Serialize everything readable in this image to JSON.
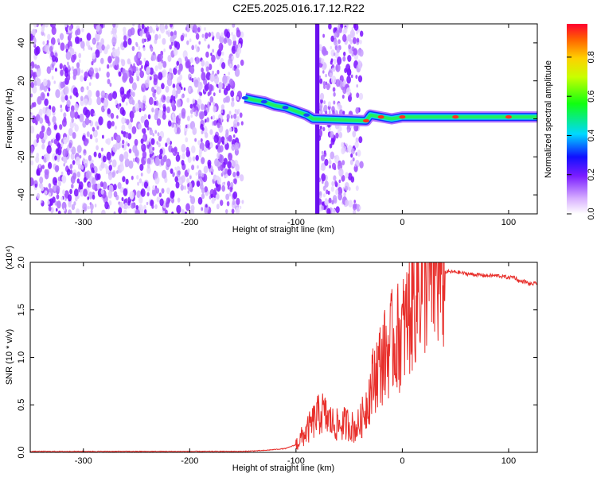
{
  "title": "C2E5.2025.016.17.12.R22",
  "chart_data": [
    {
      "type": "heatmap",
      "xlabel": "Height of straight line (km)",
      "ylabel": "Frequency (Hz)",
      "xlim": [
        -350,
        127
      ],
      "ylim": [
        -50,
        50
      ],
      "xticks": [
        -300,
        -200,
        -100,
        0,
        100
      ],
      "yticks": [
        -40,
        -20,
        0,
        20,
        40
      ],
      "colorbar": {
        "label": "Normalized spectral amplitude",
        "range": [
          0.0,
          0.97
        ],
        "ticks": [
          0.0,
          0.2,
          0.4,
          0.6,
          0.8
        ]
      },
      "regions": [
        {
          "x": [
            -350,
            -150
          ],
          "description": "broadband noise"
        },
        {
          "x": [
            -148,
            -82
          ],
          "freq_start": 11,
          "freq_end": 1
        },
        {
          "x": [
            -82,
            -78
          ],
          "description": "vertical streak"
        },
        {
          "x": [
            -78,
            -38
          ],
          "description": "broadband noise"
        },
        {
          "x": [
            -38,
            127
          ],
          "freq": 1
        }
      ],
      "ridge": [
        {
          "x": -148,
          "y": 11
        },
        {
          "x": -140,
          "y": 10
        },
        {
          "x": -130,
          "y": 9
        },
        {
          "x": -120,
          "y": 7
        },
        {
          "x": -110,
          "y": 6
        },
        {
          "x": -100,
          "y": 4
        },
        {
          "x": -90,
          "y": 2
        },
        {
          "x": -84,
          "y": 0
        },
        {
          "x": -34,
          "y": -1
        },
        {
          "x": -30,
          "y": 2
        },
        {
          "x": -20,
          "y": 1
        },
        {
          "x": -10,
          "y": 0
        },
        {
          "x": 0,
          "y": 1
        },
        {
          "x": 20,
          "y": 1
        },
        {
          "x": 50,
          "y": 1
        },
        {
          "x": 80,
          "y": 1
        },
        {
          "x": 100,
          "y": 1
        },
        {
          "x": 127,
          "y": 1
        }
      ]
    },
    {
      "type": "line",
      "xlabel": "Height of straight line (km)",
      "ylabel": "SNR (10 * v/v)",
      "multiplier": "(x10⁴)",
      "xlim": [
        -350,
        127
      ],
      "ylim": [
        0,
        2.0
      ],
      "xticks": [
        -300,
        -200,
        -100,
        0,
        100
      ],
      "yticks": [
        0.0,
        0.5,
        1.0,
        1.5,
        2.0
      ],
      "series": [
        {
          "color": "#e8302c",
          "x": [
            -350,
            -300,
            -250,
            -200,
            -150,
            -130,
            -110,
            -100,
            -95,
            -90,
            -85,
            -80,
            -75,
            -70,
            -65,
            -60,
            -55,
            -50,
            -45,
            -40,
            -35,
            -30,
            -25,
            -20,
            -15,
            -10,
            -5,
            0,
            5,
            10,
            15,
            20,
            25,
            30,
            35,
            40,
            50,
            60,
            70,
            80,
            90,
            100,
            105,
            110,
            115,
            120,
            127
          ],
          "y": [
            0.01,
            0.01,
            0.01,
            0.01,
            0.01,
            0.02,
            0.04,
            0.08,
            0.15,
            0.22,
            0.3,
            0.38,
            0.42,
            0.35,
            0.3,
            0.28,
            0.3,
            0.3,
            0.25,
            0.3,
            0.45,
            0.65,
            0.85,
            0.95,
            1.05,
            1.15,
            1.2,
            1.25,
            1.4,
            1.6,
            1.75,
            1.85,
            1.88,
            1.9,
            1.9,
            1.9,
            1.9,
            1.88,
            1.87,
            1.86,
            1.86,
            1.84,
            1.85,
            1.8,
            1.8,
            1.77,
            1.78
          ]
        }
      ]
    }
  ]
}
